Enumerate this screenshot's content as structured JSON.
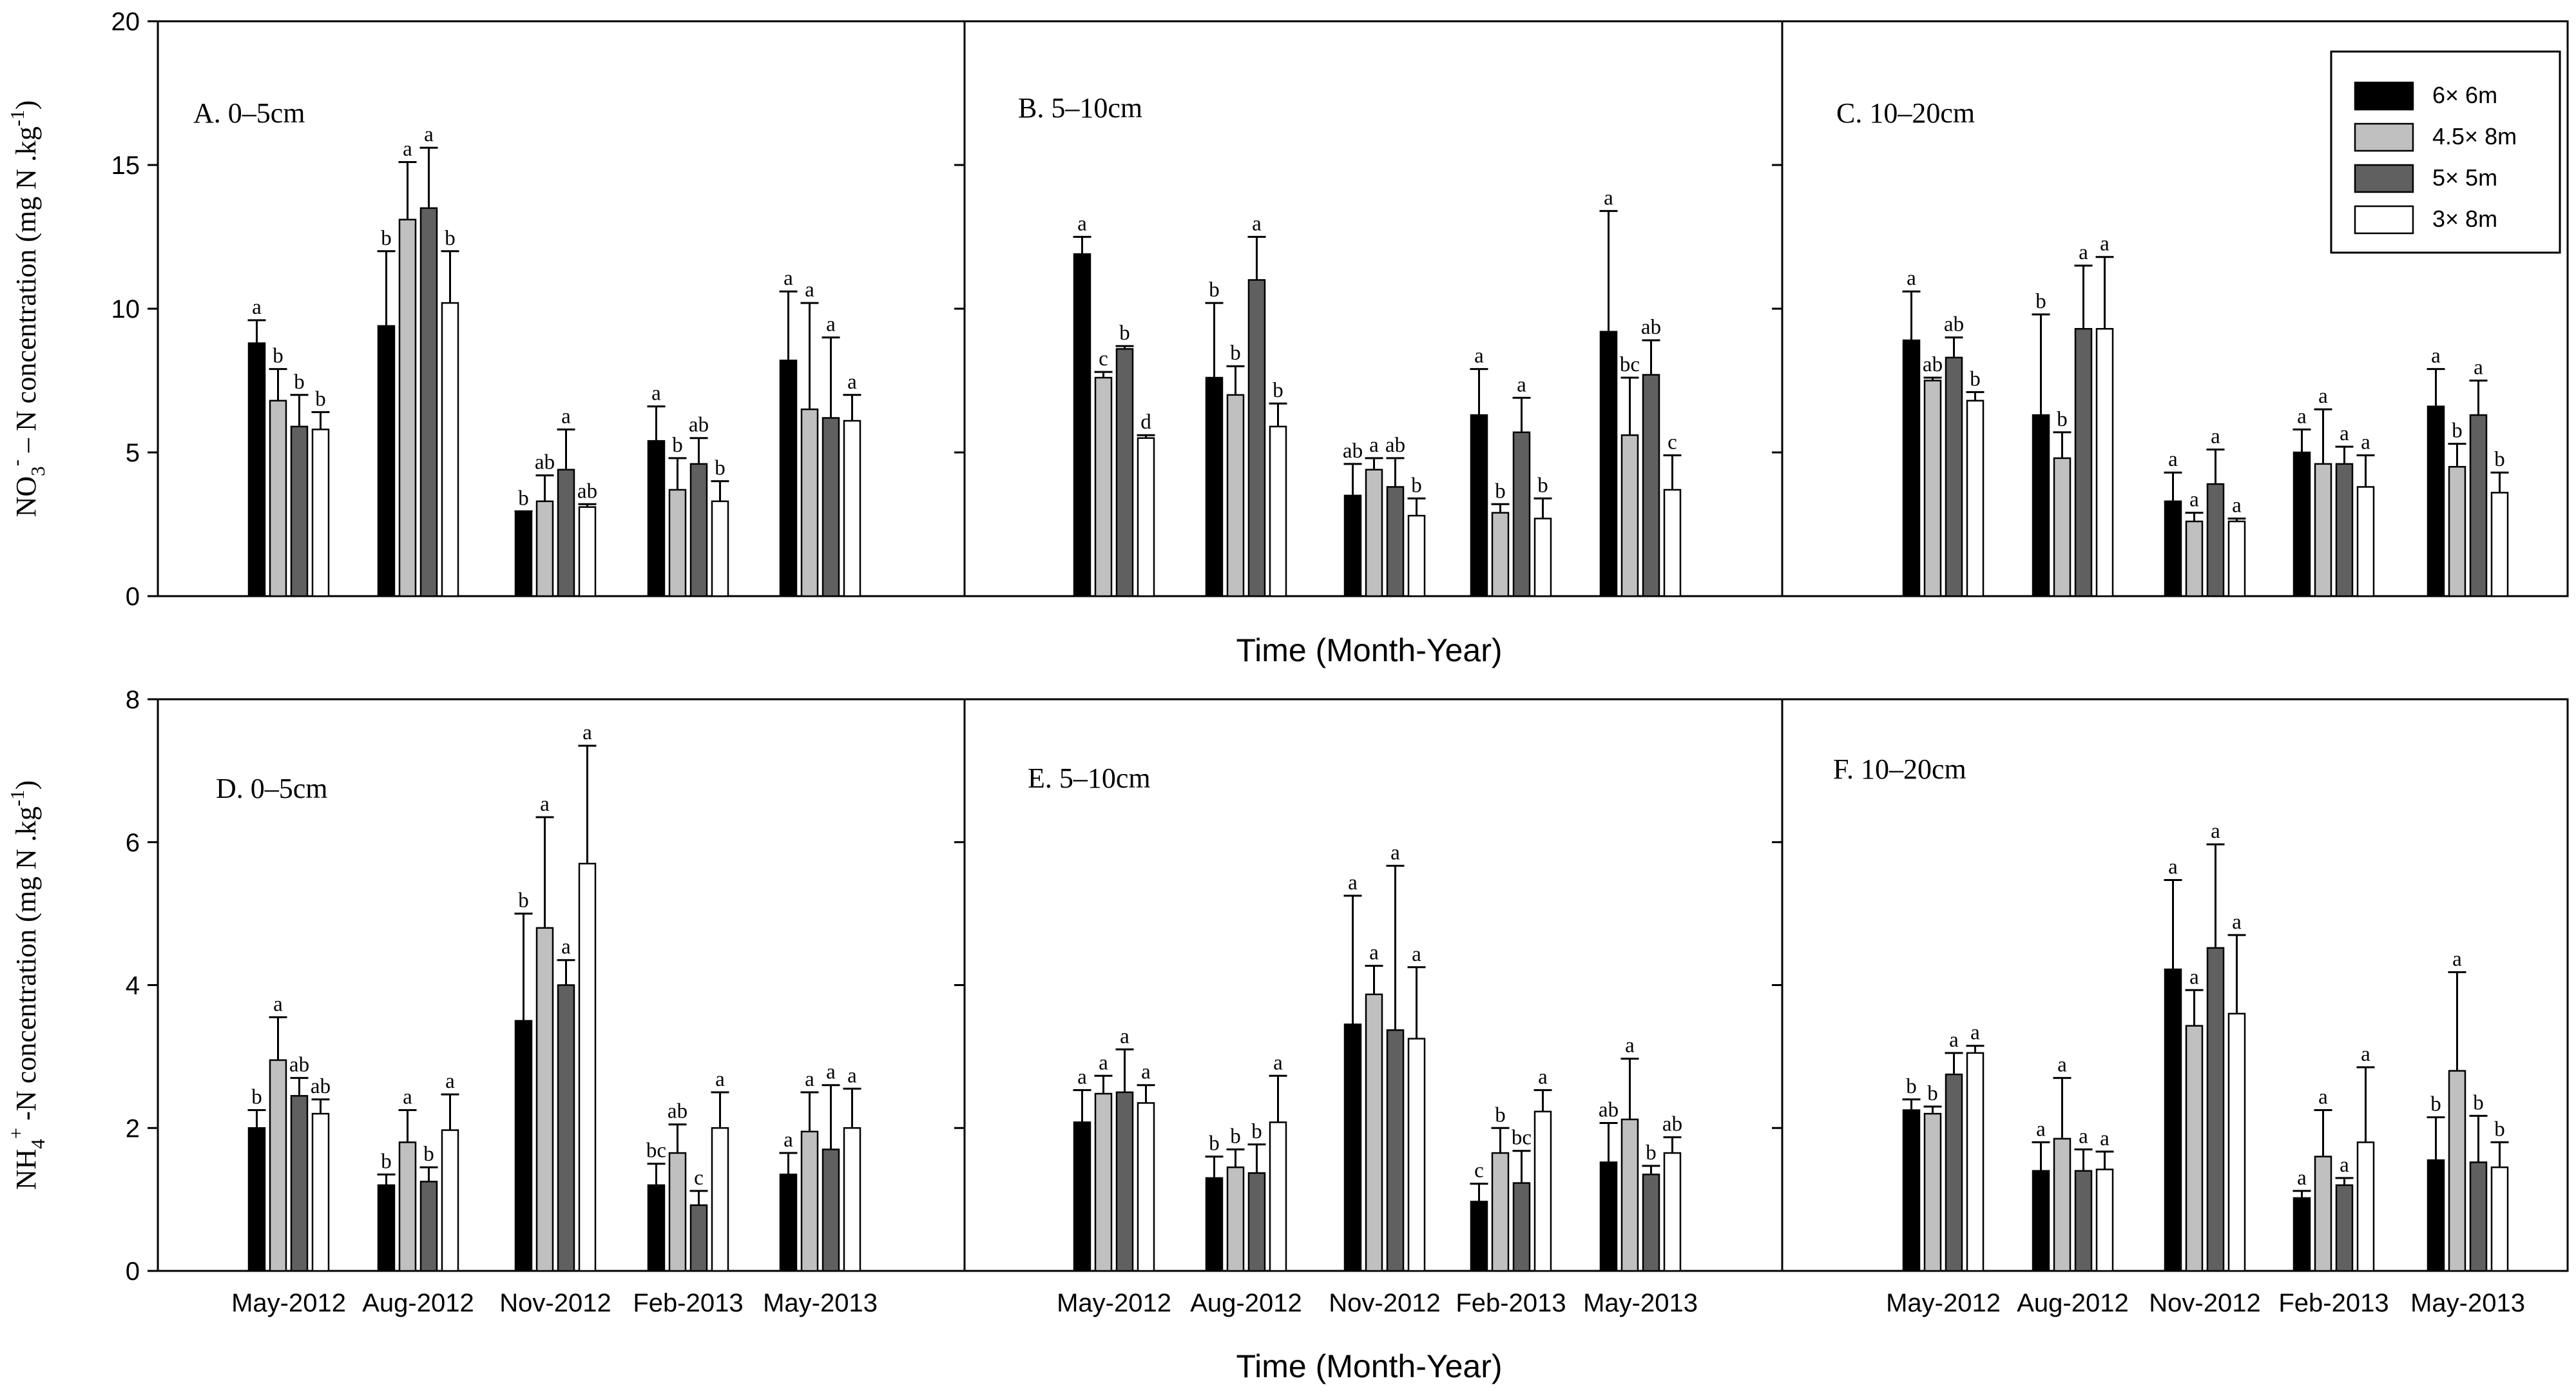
{
  "chart_data": {
    "type": "bar",
    "categories": [
      "May-2012",
      "Aug-2012",
      "Nov-2012",
      "Feb-2013",
      "May-2013"
    ],
    "series_names": [
      "6× 6m",
      "4.5× 8m",
      "5× 5m",
      "3× 8m"
    ],
    "series_colors": [
      "#000000",
      "#c0c0c0",
      "#606060",
      "#ffffff"
    ],
    "x_axis_label": "Time (Month-Year)",
    "rows": [
      {
        "ylabel_main": "NO",
        "ylabel_sub": "3",
        "ylabel_sup": "-",
        "ylabel_tail": " – N concentration (mg N .kg",
        "ylabel_sup2": "-1",
        "ylabel_end": ")",
        "ylim": [
          0,
          20
        ],
        "yticks": [
          "0",
          "5",
          "10",
          "15",
          "20"
        ],
        "tick_values": [
          0,
          5,
          10,
          15,
          20
        ],
        "panels": [
          {
            "label": "A. 0–5cm",
            "values": [
              [
                8.8,
                6.8,
                5.9,
                5.8
              ],
              [
                9.4,
                13.1,
                13.5,
                10.2
              ],
              [
                2.9,
                3.3,
                4.4,
                3.1
              ],
              [
                5.4,
                3.7,
                4.6,
                3.3
              ],
              [
                8.2,
                6.5,
                6.2,
                6.1
              ]
            ],
            "errors": [
              [
                0.8,
                1.1,
                1.1,
                0.6
              ],
              [
                2.6,
                2.0,
                2.1,
                1.8
              ],
              [
                0.05,
                0.9,
                1.4,
                0.1
              ],
              [
                1.2,
                1.1,
                0.9,
                0.7
              ],
              [
                2.4,
                3.7,
                2.8,
                0.9
              ]
            ],
            "letters": [
              [
                "a",
                "b",
                "b",
                "b"
              ],
              [
                "b",
                "a",
                "a",
                "b"
              ],
              [
                "b",
                "ab",
                "a",
                "ab"
              ],
              [
                "a",
                "b",
                "ab",
                "b"
              ],
              [
                "a",
                "a",
                "a",
                "a"
              ]
            ]
          },
          {
            "label": "B. 5–10cm",
            "values": [
              [
                11.9,
                7.6,
                8.6,
                5.5
              ],
              [
                7.6,
                7.0,
                11.0,
                5.9
              ],
              [
                3.5,
                4.4,
                3.8,
                2.8
              ],
              [
                6.3,
                2.9,
                5.7,
                2.7
              ],
              [
                9.2,
                5.6,
                7.7,
                3.7
              ]
            ],
            "errors": [
              [
                0.6,
                0.2,
                0.1,
                0.1
              ],
              [
                2.6,
                1.0,
                1.5,
                0.8
              ],
              [
                1.1,
                0.4,
                1.0,
                0.6
              ],
              [
                1.6,
                0.3,
                1.2,
                0.7
              ],
              [
                4.2,
                2.0,
                1.2,
                1.2
              ]
            ],
            "letters": [
              [
                "a",
                "c",
                "b",
                "d"
              ],
              [
                "b",
                "b",
                "a",
                "b"
              ],
              [
                "ab",
                "a",
                "ab",
                "b"
              ],
              [
                "a",
                "b",
                "a",
                "b"
              ],
              [
                "a",
                "bc",
                "ab",
                "c"
              ]
            ]
          },
          {
            "label": "C. 10–20cm",
            "values": [
              [
                8.9,
                7.5,
                8.3,
                6.8
              ],
              [
                6.3,
                4.8,
                9.3,
                9.3
              ],
              [
                3.3,
                2.6,
                3.9,
                2.6
              ],
              [
                5.0,
                4.6,
                4.6,
                3.8
              ],
              [
                6.6,
                4.5,
                6.3,
                3.6
              ]
            ],
            "errors": [
              [
                1.7,
                0.1,
                0.7,
                0.3
              ],
              [
                3.5,
                0.9,
                2.2,
                2.5
              ],
              [
                1.0,
                0.3,
                1.2,
                0.1
              ],
              [
                0.8,
                1.9,
                0.6,
                1.1
              ],
              [
                1.3,
                0.8,
                1.2,
                0.7
              ]
            ],
            "letters": [
              [
                "a",
                "ab",
                "ab",
                "b"
              ],
              [
                "b",
                "b",
                "a",
                "a"
              ],
              [
                "a",
                "a",
                "a",
                "a"
              ],
              [
                "a",
                "a",
                "a",
                "a"
              ],
              [
                "a",
                "b",
                "a",
                "b"
              ]
            ]
          }
        ]
      },
      {
        "ylabel_main": "NH",
        "ylabel_sub": "4",
        "ylabel_sup": "+",
        "ylabel_tail": " -N concentration (mg N .kg",
        "ylabel_sup2": "-1",
        "ylabel_end": ")",
        "ylim": [
          0,
          8
        ],
        "yticks": [
          "0",
          "2",
          "4",
          "6",
          "8"
        ],
        "tick_values": [
          0,
          2,
          4,
          6,
          8
        ],
        "panels": [
          {
            "label": "D. 0–5cm",
            "values": [
              [
                2.0,
                2.95,
                2.45,
                2.2
              ],
              [
                1.2,
                1.8,
                1.25,
                1.97
              ],
              [
                3.5,
                4.8,
                4.0,
                5.7
              ],
              [
                1.2,
                1.65,
                0.92,
                2.0
              ],
              [
                1.35,
                1.95,
                1.7,
                2.0
              ]
            ],
            "errors": [
              [
                0.25,
                0.6,
                0.25,
                0.2
              ],
              [
                0.15,
                0.45,
                0.2,
                0.5
              ],
              [
                1.5,
                1.55,
                0.35,
                1.65
              ],
              [
                0.3,
                0.4,
                0.2,
                0.5
              ],
              [
                0.3,
                0.55,
                0.9,
                0.55
              ]
            ],
            "letters": [
              [
                "b",
                "a",
                "ab",
                "ab"
              ],
              [
                "b",
                "a",
                "b",
                "a"
              ],
              [
                "b",
                "a",
                "a",
                "a"
              ],
              [
                "bc",
                "ab",
                "c",
                "a"
              ],
              [
                "a",
                "a",
                "a",
                "a"
              ]
            ]
          },
          {
            "label": "E. 5–10cm",
            "values": [
              [
                2.08,
                2.48,
                2.5,
                2.35
              ],
              [
                1.3,
                1.45,
                1.37,
                2.08
              ],
              [
                3.45,
                3.87,
                3.37,
                3.25
              ],
              [
                0.97,
                1.65,
                1.23,
                2.23
              ],
              [
                1.52,
                2.12,
                1.35,
                1.65
              ]
            ],
            "errors": [
              [
                0.45,
                0.25,
                0.6,
                0.25
              ],
              [
                0.3,
                0.25,
                0.4,
                0.65
              ],
              [
                1.8,
                0.4,
                2.3,
                1.0
              ],
              [
                0.25,
                0.35,
                0.45,
                0.3
              ],
              [
                0.55,
                0.85,
                0.12,
                0.22
              ]
            ],
            "letters": [
              [
                "a",
                "a",
                "a",
                "a"
              ],
              [
                "b",
                "b",
                "b",
                "a"
              ],
              [
                "a",
                "a",
                "a",
                "a"
              ],
              [
                "c",
                "b",
                "bc",
                "a"
              ],
              [
                "ab",
                "a",
                "b",
                "ab"
              ]
            ]
          },
          {
            "label": "F. 10–20cm",
            "values": [
              [
                2.25,
                2.2,
                2.75,
                3.05
              ],
              [
                1.4,
                1.85,
                1.4,
                1.42
              ],
              [
                4.22,
                3.43,
                4.52,
                3.6
              ],
              [
                1.02,
                1.6,
                1.2,
                1.8
              ],
              [
                1.55,
                2.8,
                1.52,
                1.45
              ]
            ],
            "errors": [
              [
                0.15,
                0.1,
                0.3,
                0.1
              ],
              [
                0.4,
                0.85,
                0.3,
                0.25
              ],
              [
                1.25,
                0.5,
                1.45,
                1.1
              ],
              [
                0.1,
                0.65,
                0.1,
                1.05
              ],
              [
                0.6,
                1.38,
                0.65,
                0.35
              ]
            ],
            "letters": [
              [
                "b",
                "b",
                "a",
                "a"
              ],
              [
                "a",
                "a",
                "a",
                "a"
              ],
              [
                "a",
                "a",
                "a",
                "a"
              ],
              [
                "a",
                "a",
                "a",
                "a"
              ],
              [
                "b",
                "a",
                "b",
                "b"
              ]
            ]
          }
        ]
      }
    ]
  }
}
